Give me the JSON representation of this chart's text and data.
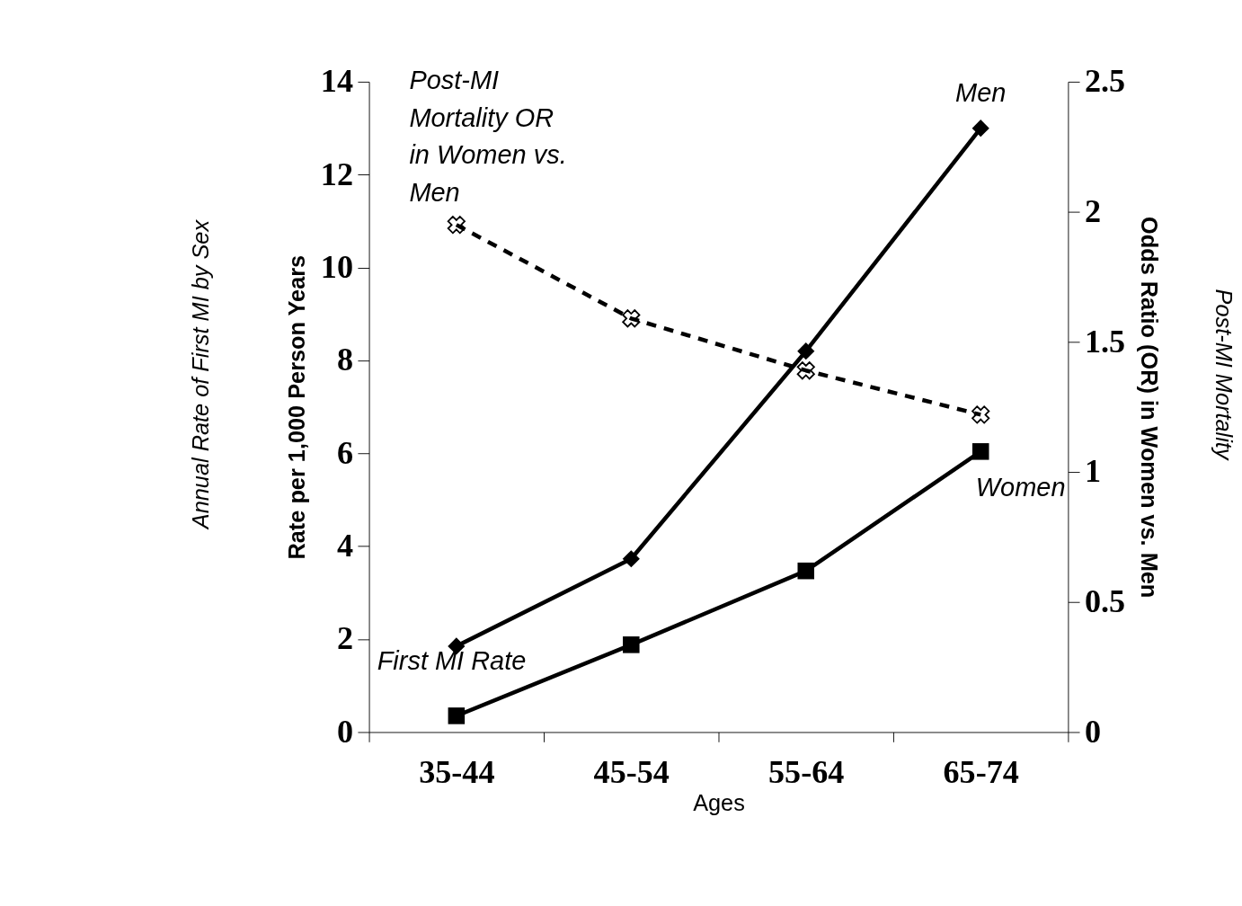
{
  "chart_data": {
    "type": "line",
    "xlabel": "Ages",
    "ylabel": "Rate per 1,000 Person Years",
    "y2label": "Odds Ratio (OR) in Women vs. Men",
    "categories": [
      "35-44",
      "45-54",
      "55-64",
      "65-74"
    ],
    "series": [
      {
        "name": "Men",
        "color": "#000000",
        "marker": "diamond",
        "line_style": "solid",
        "values": [
          1.85,
          3.73,
          8.2,
          13.0
        ]
      },
      {
        "name": "Women",
        "color": "#000000",
        "marker": "square",
        "line_style": "solid",
        "values": [
          0.35,
          1.88,
          3.47,
          6.04
        ]
      },
      {
        "name": "Post-MI Mortality OR in Women vs. Men",
        "color": "#000000",
        "marker": "cross",
        "line_style": "dashed",
        "axis": "y2",
        "values": [
          1.95,
          1.59,
          1.39,
          1.22
        ]
      }
    ],
    "ylim": [
      0,
      14
    ],
    "yticks": [
      0,
      2,
      4,
      6,
      8,
      10,
      12,
      14
    ],
    "y2lim": [
      0,
      2.5
    ],
    "y2ticks": [
      0,
      0.5,
      1,
      1.5,
      2,
      2.5
    ],
    "annotations": [
      "First MI Rate",
      "Annual Rate of First MI by Sex",
      "Post-MI Mortality"
    ],
    "grid": false,
    "legend": false
  }
}
